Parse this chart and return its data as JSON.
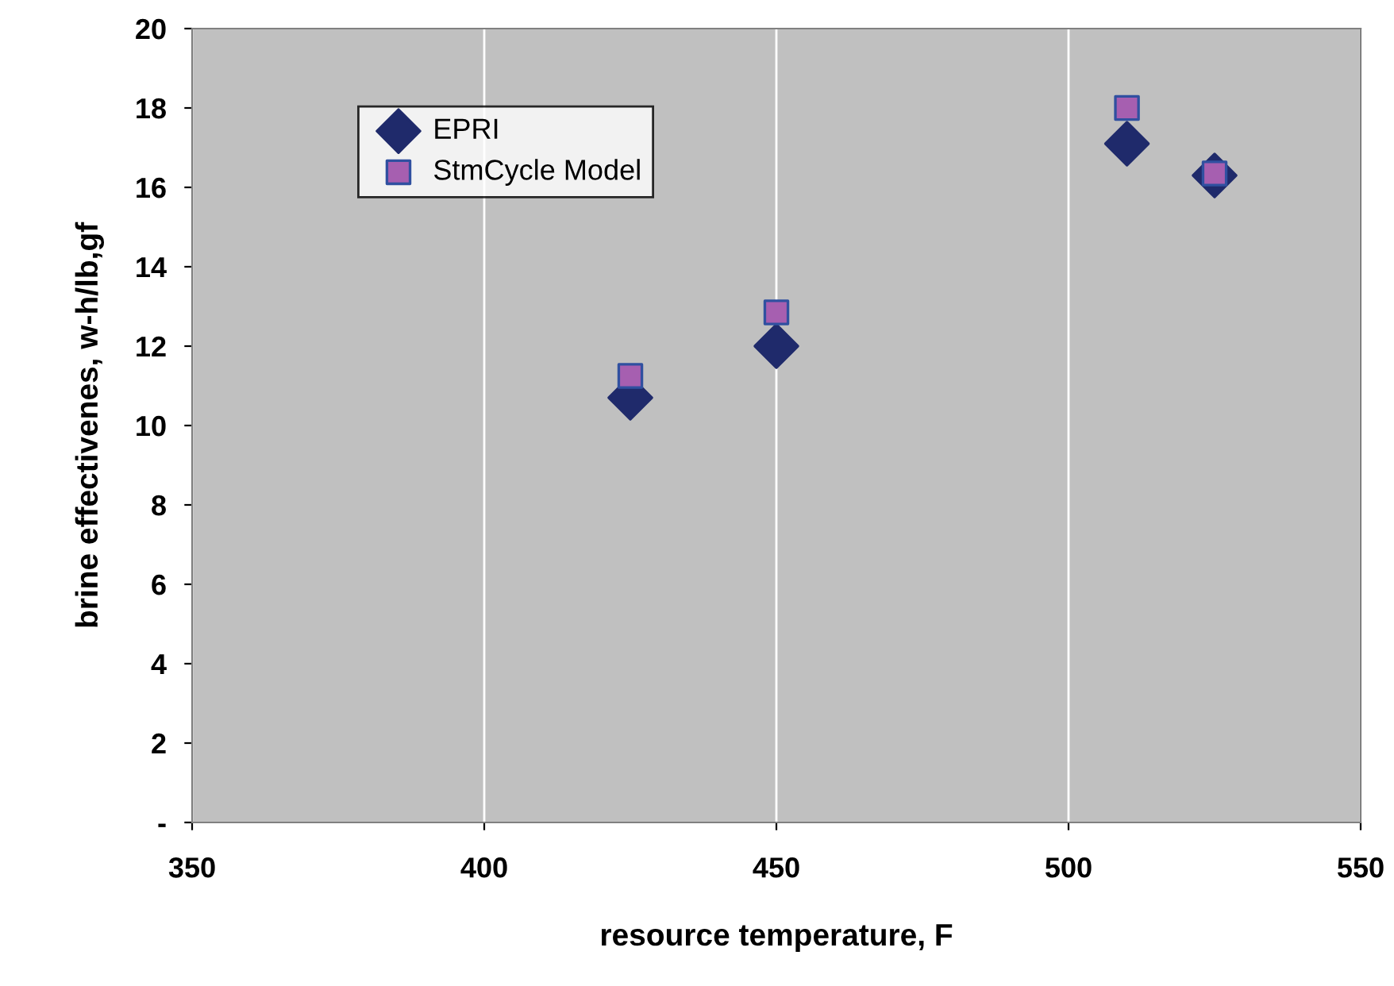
{
  "chart_data": {
    "type": "scatter",
    "xlabel": "resource temperature, F",
    "ylabel": "brine effectivenes, w-h/lb,gf",
    "x": [
      425,
      450,
      510,
      525
    ],
    "series": [
      {
        "name": "EPRI",
        "color": "#1f2a6b",
        "marker": "diamond",
        "values": [
          10.7,
          12.0,
          17.1,
          16.3
        ]
      },
      {
        "name": "StmCycle Model",
        "color": "#a65fb0",
        "marker": "square",
        "values": [
          11.25,
          12.85,
          18.0,
          16.35
        ]
      }
    ],
    "xlim": [
      350,
      550
    ],
    "xticks": [
      350,
      400,
      450,
      500,
      550
    ],
    "ylim": [
      0,
      20
    ],
    "yticks": [
      {
        "value": 0,
        "label": "-"
      },
      2,
      4,
      6,
      8,
      10,
      12,
      14,
      16,
      18,
      20
    ],
    "grid": "x",
    "legend": "top left"
  }
}
